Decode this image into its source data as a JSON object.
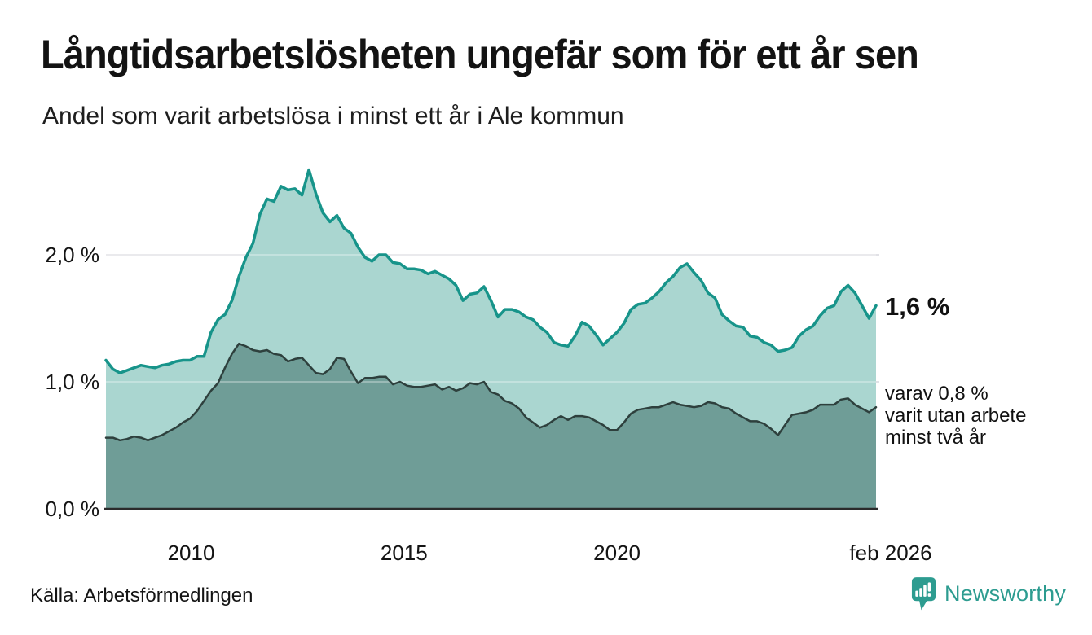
{
  "chart_data": {
    "type": "area",
    "title": "Långtidsarbetslösheten ungefär som för ett år sen",
    "subtitle": "Andel som varit arbetslösa i minst ett år i Ale kommun",
    "x_start": 2008.0,
    "x_end": 2026.083,
    "ylim": [
      0,
      2.8
    ],
    "unit": "%",
    "grid": "horizontal",
    "legend": "direct-labels",
    "x_ticks": [
      {
        "t": 2010,
        "label": "2010"
      },
      {
        "t": 2015,
        "label": "2015"
      },
      {
        "t": 2020,
        "label": "2020"
      },
      {
        "t": 2026.083,
        "label": "feb 2026"
      }
    ],
    "y_ticks": [
      {
        "v": 0,
        "label": "0,0 %"
      },
      {
        "v": 1,
        "label": "1,0 %"
      },
      {
        "v": 2,
        "label": "2,0 %"
      }
    ],
    "colors": {
      "grid": "#e1e1e6",
      "grid_overlay": "rgba(255,255,255,0.3)",
      "axis": "#2b2b2b",
      "tick_text": "#141414"
    },
    "series": [
      {
        "id": "minst-ett-ar",
        "name": "Andel arbetslösa minst ett år",
        "color": "#17948a",
        "fill": "#aad6d0",
        "line_width": 3.5,
        "latest_value": 1.6,
        "values": [
          1.17,
          1.1,
          1.07,
          1.09,
          1.11,
          1.13,
          1.12,
          1.11,
          1.13,
          1.14,
          1.16,
          1.17,
          1.17,
          1.2,
          1.2,
          1.39,
          1.49,
          1.53,
          1.64,
          1.83,
          1.98,
          2.09,
          2.32,
          2.44,
          2.42,
          2.54,
          2.51,
          2.52,
          2.47,
          2.67,
          2.48,
          2.33,
          2.26,
          2.31,
          2.21,
          2.17,
          2.06,
          1.98,
          1.95,
          2.0,
          2.0,
          1.94,
          1.93,
          1.89,
          1.89,
          1.88,
          1.85,
          1.87,
          1.84,
          1.81,
          1.76,
          1.64,
          1.69,
          1.7,
          1.75,
          1.64,
          1.51,
          1.57,
          1.57,
          1.55,
          1.51,
          1.49,
          1.43,
          1.39,
          1.31,
          1.29,
          1.28,
          1.36,
          1.47,
          1.44,
          1.37,
          1.29,
          1.34,
          1.39,
          1.46,
          1.57,
          1.61,
          1.62,
          1.66,
          1.71,
          1.78,
          1.83,
          1.9,
          1.93,
          1.86,
          1.8,
          1.7,
          1.66,
          1.53,
          1.48,
          1.44,
          1.43,
          1.36,
          1.35,
          1.31,
          1.29,
          1.24,
          1.25,
          1.27,
          1.36,
          1.41,
          1.44,
          1.52,
          1.58,
          1.6,
          1.71,
          1.76,
          1.7,
          1.6,
          1.5,
          1.6
        ]
      },
      {
        "id": "minst-tva-ar",
        "name": "Andel arbetslösa minst två år",
        "color": "#2e403d",
        "fill": "#6f9d97",
        "line_width": 2.5,
        "latest_value": 0.8,
        "values": [
          0.56,
          0.56,
          0.54,
          0.55,
          0.57,
          0.56,
          0.54,
          0.56,
          0.58,
          0.61,
          0.64,
          0.68,
          0.71,
          0.77,
          0.85,
          0.93,
          0.99,
          1.11,
          1.22,
          1.3,
          1.28,
          1.25,
          1.24,
          1.25,
          1.22,
          1.21,
          1.16,
          1.18,
          1.19,
          1.13,
          1.07,
          1.06,
          1.1,
          1.19,
          1.18,
          1.08,
          0.99,
          1.03,
          1.03,
          1.04,
          1.04,
          0.98,
          1.0,
          0.97,
          0.96,
          0.96,
          0.97,
          0.98,
          0.94,
          0.96,
          0.93,
          0.95,
          0.99,
          0.98,
          1.0,
          0.92,
          0.9,
          0.85,
          0.83,
          0.79,
          0.72,
          0.68,
          0.64,
          0.66,
          0.7,
          0.73,
          0.7,
          0.73,
          0.73,
          0.72,
          0.69,
          0.66,
          0.62,
          0.62,
          0.68,
          0.75,
          0.78,
          0.79,
          0.8,
          0.8,
          0.82,
          0.84,
          0.82,
          0.81,
          0.8,
          0.81,
          0.84,
          0.83,
          0.8,
          0.79,
          0.75,
          0.72,
          0.69,
          0.69,
          0.67,
          0.63,
          0.58,
          0.66,
          0.74,
          0.75,
          0.76,
          0.78,
          0.82,
          0.82,
          0.82,
          0.86,
          0.87,
          0.82,
          0.79,
          0.76,
          0.8
        ]
      }
    ],
    "annotations": {
      "latest_value": "1,6 %",
      "secondary_lines": [
        "varav 0,8 %",
        "varit utan arbete",
        "minst två år"
      ]
    }
  },
  "footer": {
    "source": "Källa: Arbetsförmedlingen",
    "logo_text": "Newsworthy",
    "logo_color": "#2d9c90"
  }
}
